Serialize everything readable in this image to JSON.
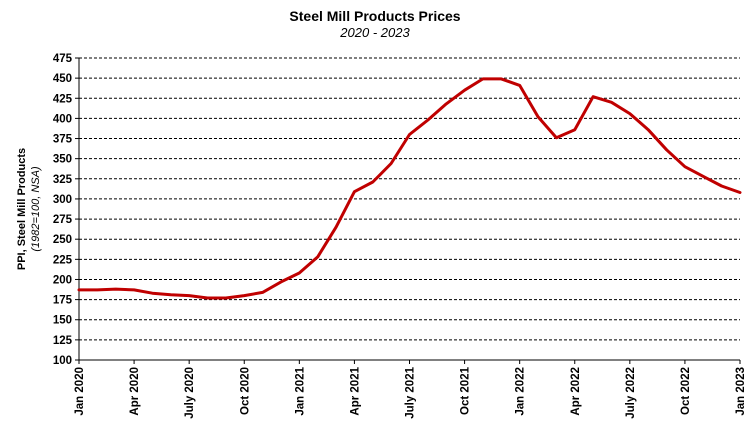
{
  "chart_data": {
    "type": "line",
    "title": "Steel Mill Products Prices",
    "subtitle": "2020 - 2023",
    "ylabel": "PPI, Steel Mill Products",
    "ylabel_note": "(1982=100, NSA)",
    "xlabel": "",
    "ylim": [
      100,
      475
    ],
    "yticks": [
      100,
      125,
      150,
      175,
      200,
      225,
      250,
      275,
      300,
      325,
      350,
      375,
      400,
      425,
      450,
      475
    ],
    "grid": true,
    "line_color": "#c00000",
    "x_tick_labels": [
      {
        "index": 0,
        "label": "Jan 2020"
      },
      {
        "index": 3,
        "label": "Apr 2020"
      },
      {
        "index": 6,
        "label": "July 2020"
      },
      {
        "index": 9,
        "label": "Oct 2020"
      },
      {
        "index": 12,
        "label": "Jan 2021"
      },
      {
        "index": 15,
        "label": "Apr 2021"
      },
      {
        "index": 18,
        "label": "July 2021"
      },
      {
        "index": 21,
        "label": "Oct 2021"
      },
      {
        "index": 24,
        "label": "Jan 2022"
      },
      {
        "index": 27,
        "label": "Apr 2022"
      },
      {
        "index": 30,
        "label": "July 2022"
      },
      {
        "index": 33,
        "label": "Oct 2022"
      },
      {
        "index": 36,
        "label": "Jan 2023"
      }
    ],
    "x": [
      "Jan 2020",
      "Feb 2020",
      "Mar 2020",
      "Apr 2020",
      "May 2020",
      "Jun 2020",
      "Jul 2020",
      "Aug 2020",
      "Sep 2020",
      "Oct 2020",
      "Nov 2020",
      "Dec 2020",
      "Jan 2021",
      "Feb 2021",
      "Mar 2021",
      "Apr 2021",
      "May 2021",
      "Jun 2021",
      "Jul 2021",
      "Aug 2021",
      "Sep 2021",
      "Oct 2021",
      "Nov 2021",
      "Dec 2021",
      "Jan 2022",
      "Feb 2022",
      "Mar 2022",
      "Apr 2022",
      "May 2022",
      "Jun 2022",
      "Jul 2022",
      "Aug 2022",
      "Sep 2022",
      "Oct 2022",
      "Nov 2022",
      "Dec 2022",
      "Jan 2023"
    ],
    "series": [
      {
        "values": [
          187,
          187,
          188,
          187,
          183,
          181,
          180,
          177,
          177,
          180,
          184,
          197,
          208,
          228,
          265,
          309,
          321,
          344,
          380,
          398,
          418,
          435,
          449,
          449,
          441,
          402,
          376,
          386,
          427,
          420,
          406,
          386,
          361,
          340,
          328,
          316,
          308
        ]
      }
    ]
  }
}
